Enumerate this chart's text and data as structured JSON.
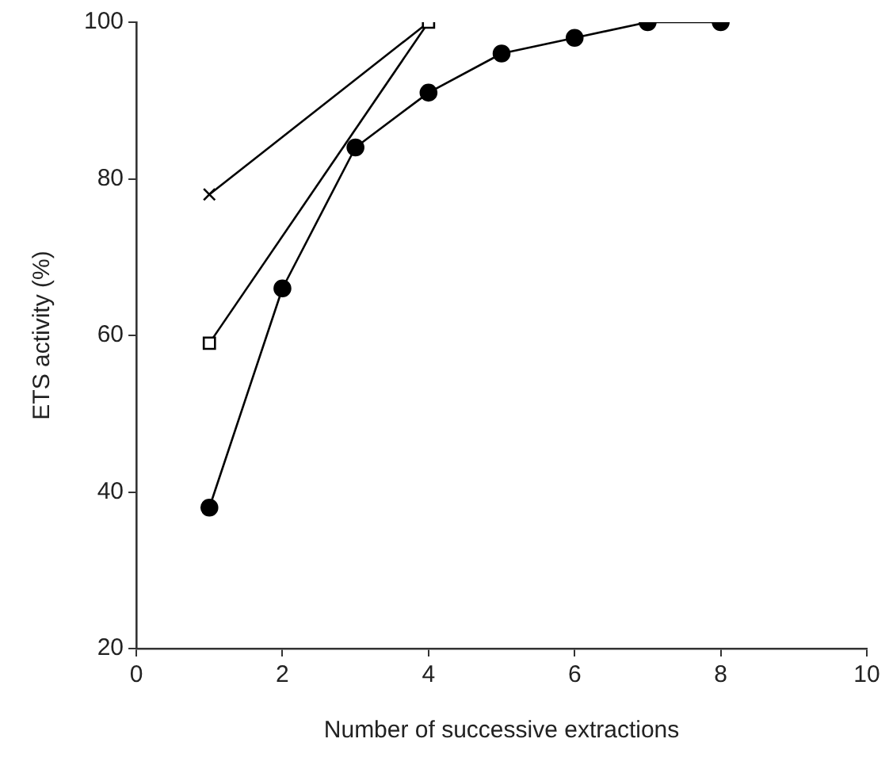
{
  "chart_data": {
    "type": "line",
    "xlabel": "Number of successive extractions",
    "ylabel": "ETS activity (%)",
    "xlim": [
      0,
      10
    ],
    "xticks": [
      0,
      2,
      4,
      6,
      8,
      10
    ],
    "ylim": [
      20,
      100
    ],
    "yticks": [
      20,
      40,
      60,
      80,
      100
    ],
    "grid": false,
    "legend": false,
    "line_style": "solid",
    "series": [
      {
        "color": "#000000",
        "marker": "circle",
        "x": [
          1,
          2,
          3,
          4,
          5,
          6,
          7,
          8
        ],
        "values": [
          38,
          66,
          84,
          91,
          96,
          98,
          100,
          100
        ]
      },
      {
        "color": "#000000",
        "marker": "square",
        "x": [
          1,
          4
        ],
        "values": [
          59,
          100
        ]
      },
      {
        "color": "#000000",
        "marker": "cross",
        "x": [
          1,
          4
        ],
        "values": [
          78,
          100
        ]
      }
    ]
  }
}
